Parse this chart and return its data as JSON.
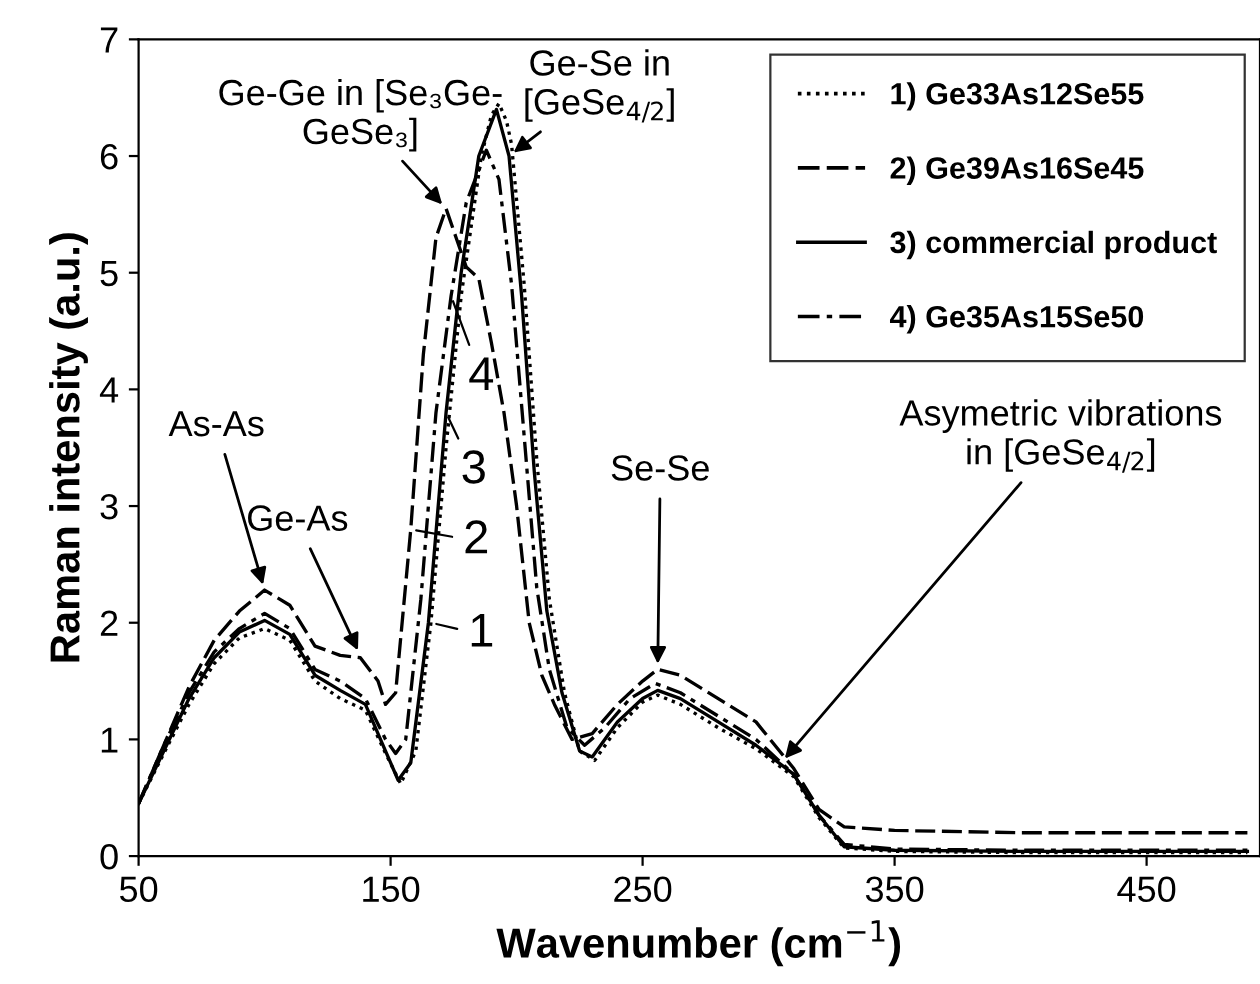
{
  "chart_data": {
    "type": "line",
    "xlabel": "Wavenumber (cm$^{−1}$)",
    "ylabel": "Raman intensity (a.u.)",
    "xlim": [
      50,
      495
    ],
    "xticks": [
      50,
      150,
      250,
      350,
      450
    ],
    "ylim": [
      0,
      7
    ],
    "yticks": [
      0,
      1,
      2,
      3,
      4,
      5,
      6,
      7
    ],
    "grid": false,
    "legend": "top right",
    "marker": "none",
    "series": [
      {
        "name": "1) Ge33As12Se55",
        "color": "#000000",
        "line_style": "dotted",
        "x": [
          50,
          60,
          70,
          80,
          90,
          100,
          110,
          120,
          130,
          140,
          148,
          154,
          160,
          166,
          172,
          178,
          186,
          190,
          193,
          196,
          198,
          203,
          208,
          213,
          219,
          225,
          231,
          240,
          250,
          256,
          265,
          280,
          295,
          310,
          320,
          330,
          350,
          400,
          450,
          490
        ],
        "values": [
          0.45,
          0.88,
          1.3,
          1.65,
          1.87,
          1.95,
          1.85,
          1.5,
          1.35,
          1.25,
          0.88,
          0.62,
          0.9,
          2.0,
          3.5,
          4.8,
          6.0,
          6.35,
          6.45,
          6.3,
          6.1,
          4.9,
          3.4,
          2.2,
          1.4,
          0.9,
          0.82,
          1.1,
          1.32,
          1.38,
          1.3,
          1.1,
          0.92,
          0.68,
          0.33,
          0.07,
          0.04,
          0.03,
          0.03,
          0.03
        ]
      },
      {
        "name": "2) Ge39As16Se45",
        "color": "#000000",
        "line_style": "dashed",
        "x": [
          50,
          60,
          70,
          80,
          90,
          100,
          110,
          120,
          130,
          138,
          145,
          148,
          152,
          158,
          163,
          168,
          172,
          176,
          180,
          185,
          190,
          195,
          200,
          205,
          210,
          215,
          222,
          230,
          240,
          250,
          256,
          265,
          280,
          295,
          310,
          320,
          330,
          350,
          400,
          450,
          490
        ],
        "values": [
          0.45,
          0.95,
          1.45,
          1.85,
          2.1,
          2.28,
          2.15,
          1.8,
          1.72,
          1.7,
          1.5,
          1.3,
          1.4,
          2.8,
          4.3,
          5.3,
          5.55,
          5.3,
          5.05,
          4.95,
          4.4,
          3.8,
          3.0,
          2.0,
          1.55,
          1.3,
          1.0,
          1.05,
          1.3,
          1.5,
          1.6,
          1.55,
          1.35,
          1.15,
          0.75,
          0.4,
          0.25,
          0.22,
          0.2,
          0.2,
          0.2
        ]
      },
      {
        "name": "3) commercial product",
        "color": "#000000",
        "line_style": "solid",
        "x": [
          50,
          60,
          70,
          80,
          90,
          100,
          110,
          120,
          130,
          140,
          148,
          153,
          158,
          165,
          172,
          178,
          185,
          192,
          197,
          202,
          207,
          212,
          218,
          225,
          230,
          240,
          250,
          256,
          265,
          280,
          295,
          310,
          320,
          330,
          350,
          400,
          450,
          490
        ],
        "values": [
          0.45,
          0.9,
          1.35,
          1.7,
          1.92,
          2.02,
          1.9,
          1.55,
          1.42,
          1.3,
          0.9,
          0.65,
          0.8,
          2.0,
          3.8,
          5.0,
          6.0,
          6.4,
          6.0,
          4.8,
          3.3,
          2.1,
          1.4,
          0.9,
          0.85,
          1.15,
          1.35,
          1.42,
          1.35,
          1.15,
          0.95,
          0.7,
          0.35,
          0.08,
          0.05,
          0.04,
          0.04,
          0.04
        ]
      },
      {
        "name": "4) Ge35As15Se50",
        "color": "#000000",
        "line_style": "dashdot",
        "x": [
          50,
          60,
          70,
          80,
          90,
          100,
          110,
          120,
          130,
          140,
          148,
          152,
          156,
          162,
          168,
          174,
          180,
          188,
          193,
          198,
          203,
          208,
          213,
          220,
          227,
          235,
          245,
          255,
          265,
          280,
          295,
          310,
          320,
          330,
          350,
          400,
          450,
          490
        ],
        "values": [
          0.45,
          0.95,
          1.4,
          1.75,
          1.95,
          2.08,
          1.95,
          1.6,
          1.5,
          1.35,
          1.0,
          0.88,
          1.0,
          2.2,
          3.8,
          4.8,
          5.6,
          6.05,
          5.8,
          4.9,
          3.6,
          2.3,
          1.6,
          1.1,
          0.95,
          1.1,
          1.35,
          1.48,
          1.4,
          1.2,
          1.0,
          0.7,
          0.35,
          0.1,
          0.06,
          0.05,
          0.05,
          0.05
        ]
      }
    ],
    "annotations": [
      {
        "text": "As-As",
        "x": 100,
        "y": 2.28
      },
      {
        "text": "Ge-As",
        "x": 138,
        "y": 1.72
      },
      {
        "text": "Ge-Ge in [Se₃Ge-\nGeSe₃]",
        "x": 172,
        "y": 5.55
      },
      {
        "text": "Ge-Se in\n[GeSe$_{4/2}$]",
        "x": 197,
        "y": 6.0
      },
      {
        "text": "Se-Se",
        "x": 256,
        "y": 1.6
      },
      {
        "text": "Asymetric vibrations\nin [GeSe$_{4/2}$]",
        "x": 305,
        "y": 0.8
      },
      {
        "text": "4",
        "x": 174,
        "y": 4.8
      },
      {
        "text": "3",
        "x": 172,
        "y": 3.8
      },
      {
        "text": "2",
        "x": 158,
        "y": 2.8
      },
      {
        "text": "1",
        "x": 166,
        "y": 2.0
      }
    ]
  }
}
